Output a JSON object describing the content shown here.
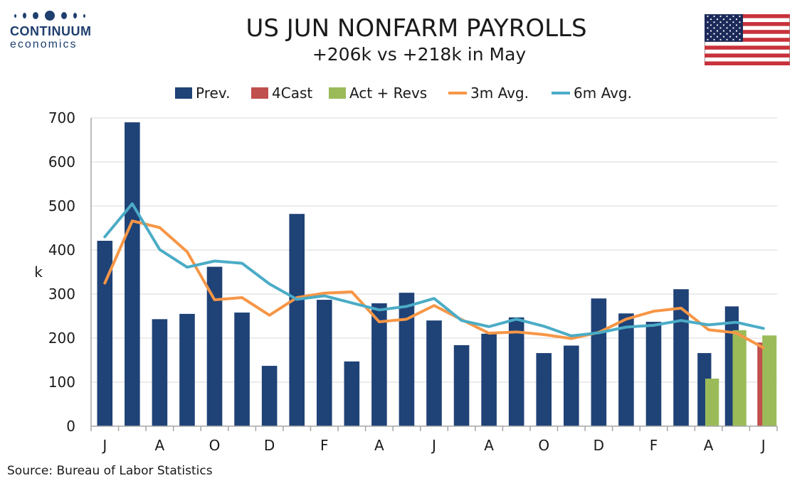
{
  "logo": {
    "name": "CONTINUUM",
    "tagline": "economics"
  },
  "title": "US JUN NONFARM PAYROLLS",
  "subtitle": "+206k vs +218k in May",
  "source": "Source: Bureau of Labor Statistics",
  "colors": {
    "prev": "#1f4277",
    "forecast": "#c0504d",
    "actual": "#9bbb59",
    "avg3": "#f79646",
    "avg6": "#4bacc6",
    "grid": "#d9d9d9",
    "axis": "#a6a6a6"
  },
  "chart_data": {
    "type": "bar",
    "ylabel": "k",
    "ylim": [
      0,
      700
    ],
    "yticks": [
      0,
      100,
      200,
      300,
      400,
      500,
      600,
      700
    ],
    "grid": true,
    "legend_position": "top",
    "x_tick_labels": [
      "J",
      "",
      "A",
      "",
      "O",
      "",
      "D",
      "",
      "F",
      "",
      "A",
      "",
      "J",
      "",
      "A",
      "",
      "O",
      "",
      "D",
      "",
      "F",
      "",
      "A",
      "",
      "J"
    ],
    "series": [
      {
        "name": "Prev.",
        "type": "bar",
        "values": [
          421,
          690,
          243,
          255,
          362,
          258,
          137,
          482,
          287,
          147,
          279,
          303,
          240,
          184,
          210,
          247,
          166,
          183,
          290,
          256,
          237,
          311,
          166,
          272,
          null
        ]
      },
      {
        "name": "4Cast",
        "type": "bar",
        "values": [
          null,
          null,
          null,
          null,
          null,
          null,
          null,
          null,
          null,
          null,
          null,
          null,
          null,
          null,
          null,
          null,
          null,
          null,
          null,
          null,
          null,
          null,
          null,
          null,
          190
        ]
      },
      {
        "name": "Act + Revs",
        "type": "bar",
        "values": [
          null,
          null,
          null,
          null,
          null,
          null,
          null,
          null,
          null,
          null,
          null,
          null,
          null,
          null,
          null,
          null,
          null,
          null,
          null,
          null,
          null,
          null,
          108,
          218,
          206
        ]
      },
      {
        "name": "3m Avg.",
        "type": "line",
        "values": [
          325,
          466,
          451,
          396,
          287,
          292,
          252,
          292,
          302,
          305,
          237,
          243,
          274,
          242,
          211,
          214,
          208,
          199,
          213,
          243,
          261,
          268,
          219,
          212,
          178
        ]
      },
      {
        "name": "6m Avg.",
        "type": "line",
        "values": [
          430,
          505,
          401,
          361,
          375,
          370,
          323,
          288,
          296,
          280,
          264,
          272,
          290,
          240,
          226,
          243,
          227,
          205,
          212,
          225,
          229,
          240,
          230,
          236,
          222
        ]
      }
    ]
  }
}
